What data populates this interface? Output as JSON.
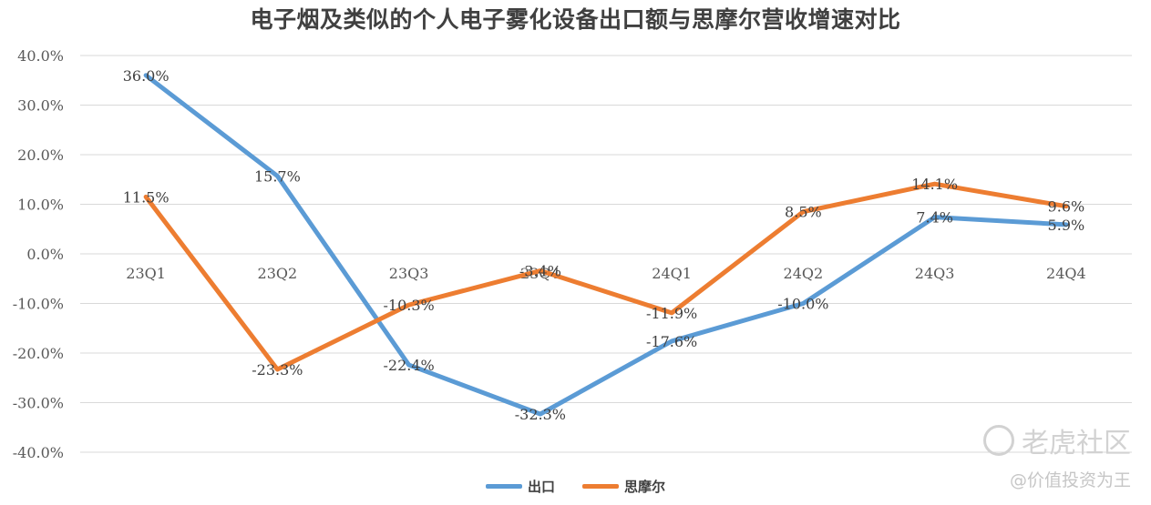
{
  "chart_data": {
    "type": "line",
    "title": "电子烟及类似的个人电子雾化设备出口额与思摩尔营收增速对比",
    "categories": [
      "23Q1",
      "23Q2",
      "23Q3",
      "23Q4",
      "24Q1",
      "24Q2",
      "24Q3",
      "24Q4"
    ],
    "series": [
      {
        "name": "出口",
        "color": "#5b9bd5",
        "values": [
          36.0,
          15.7,
          -22.4,
          -32.3,
          -17.6,
          -10.0,
          7.4,
          5.9
        ],
        "labels": [
          "36.0%",
          "15.7%",
          "-22.4%",
          "-32.3%",
          "-17.6%",
          "-10.0%",
          "7.4%",
          "5.9%"
        ]
      },
      {
        "name": "思摩尔",
        "color": "#ed7d31",
        "values": [
          11.5,
          -23.3,
          -10.3,
          -3.4,
          -11.9,
          8.5,
          14.1,
          9.6
        ],
        "labels": [
          "11.5%",
          "-23.3%",
          "-10.3%",
          "-3.4%",
          "-11.9%",
          "8.5%",
          "14.1%",
          "9.6%"
        ]
      }
    ],
    "y_ticks": [
      "40.0%",
      "30.0%",
      "20.0%",
      "10.0%",
      "0.0%",
      "-10.0%",
      "-20.0%",
      "-30.0%",
      "-40.0%"
    ],
    "ylim": [
      -40,
      40
    ],
    "grid": true,
    "legend_position": "bottom"
  },
  "watermark": {
    "brand": "老虎社区",
    "author": "@价值投资为王"
  }
}
